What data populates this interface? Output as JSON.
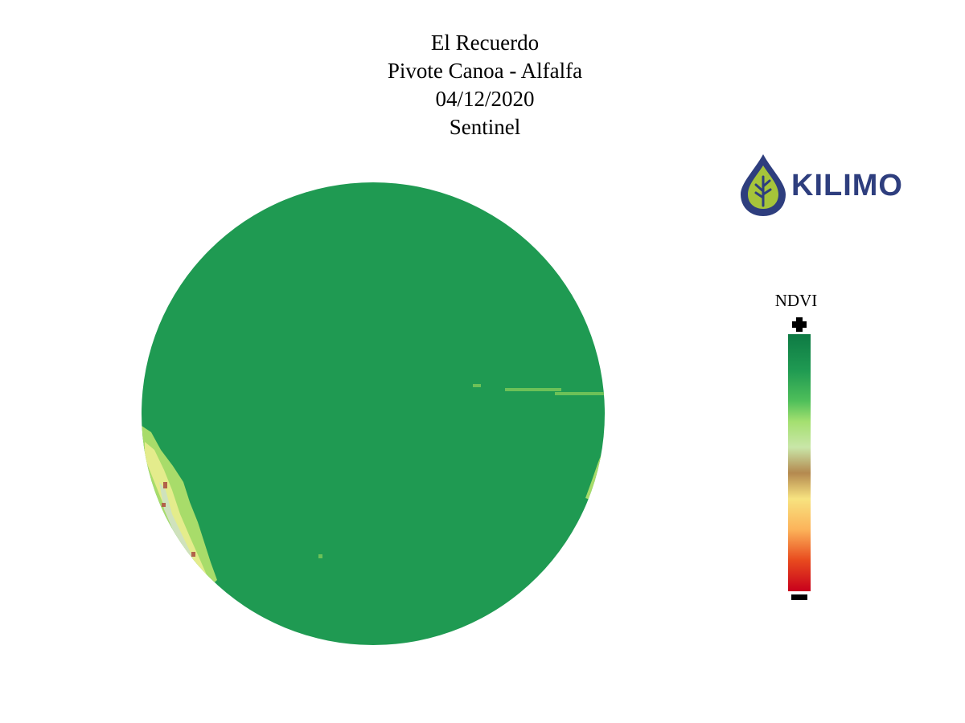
{
  "title": {
    "farm": "El Recuerdo",
    "field": "Pivote Canoa - Alfalfa",
    "date": "04/12/2020",
    "source": "Sentinel"
  },
  "logo": {
    "text": "KILIMO",
    "icon": "water-drop-leaf-icon",
    "colors": {
      "drop": "#2e3e7e",
      "leaf": "#a6c43a",
      "veins": "#2e3e7e"
    }
  },
  "legend": {
    "title": "NDVI",
    "high_symbol": "plus-icon",
    "low_symbol": "minus-icon",
    "gradient": [
      "#0e7a44",
      "#1f9a52",
      "#4fbf5a",
      "#a4e070",
      "#c9e6a8",
      "#b4894f",
      "#f7e380",
      "#fcb35a",
      "#e84a1e",
      "#c8001c"
    ]
  },
  "map": {
    "type": "NDVI field raster",
    "shape": "center-pivot circle",
    "colors": {
      "dominant": "#1f9a52",
      "stripe": "#6cc158",
      "edge_light": "#a8dc6a",
      "edge_yellow": "#e4ec8c",
      "edge_pale": "#cfe2bd",
      "edge_brown": "#b2624a"
    }
  }
}
